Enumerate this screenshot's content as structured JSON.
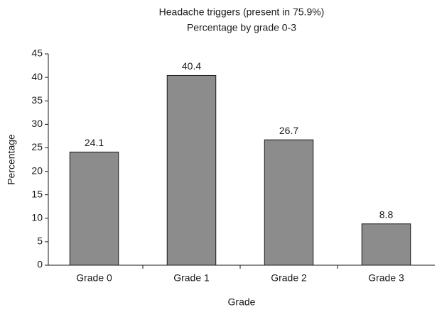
{
  "chart_data": {
    "type": "bar",
    "title": "Headache triggers (present in 75.9%)",
    "subtitle": "Percentage by grade 0-3",
    "x_label": "Grade",
    "y_label": "Percentage",
    "categories": [
      "Grade 0",
      "Grade 1",
      "Grade 2",
      "Grade 3"
    ],
    "values": [
      24.1,
      40.4,
      26.7,
      8.8
    ],
    "color": "#8c8c8c",
    "ylim": [
      0,
      45
    ],
    "yticks": [
      0,
      5,
      10,
      15,
      20,
      25,
      30,
      35,
      40,
      45
    ],
    "grid": false
  }
}
